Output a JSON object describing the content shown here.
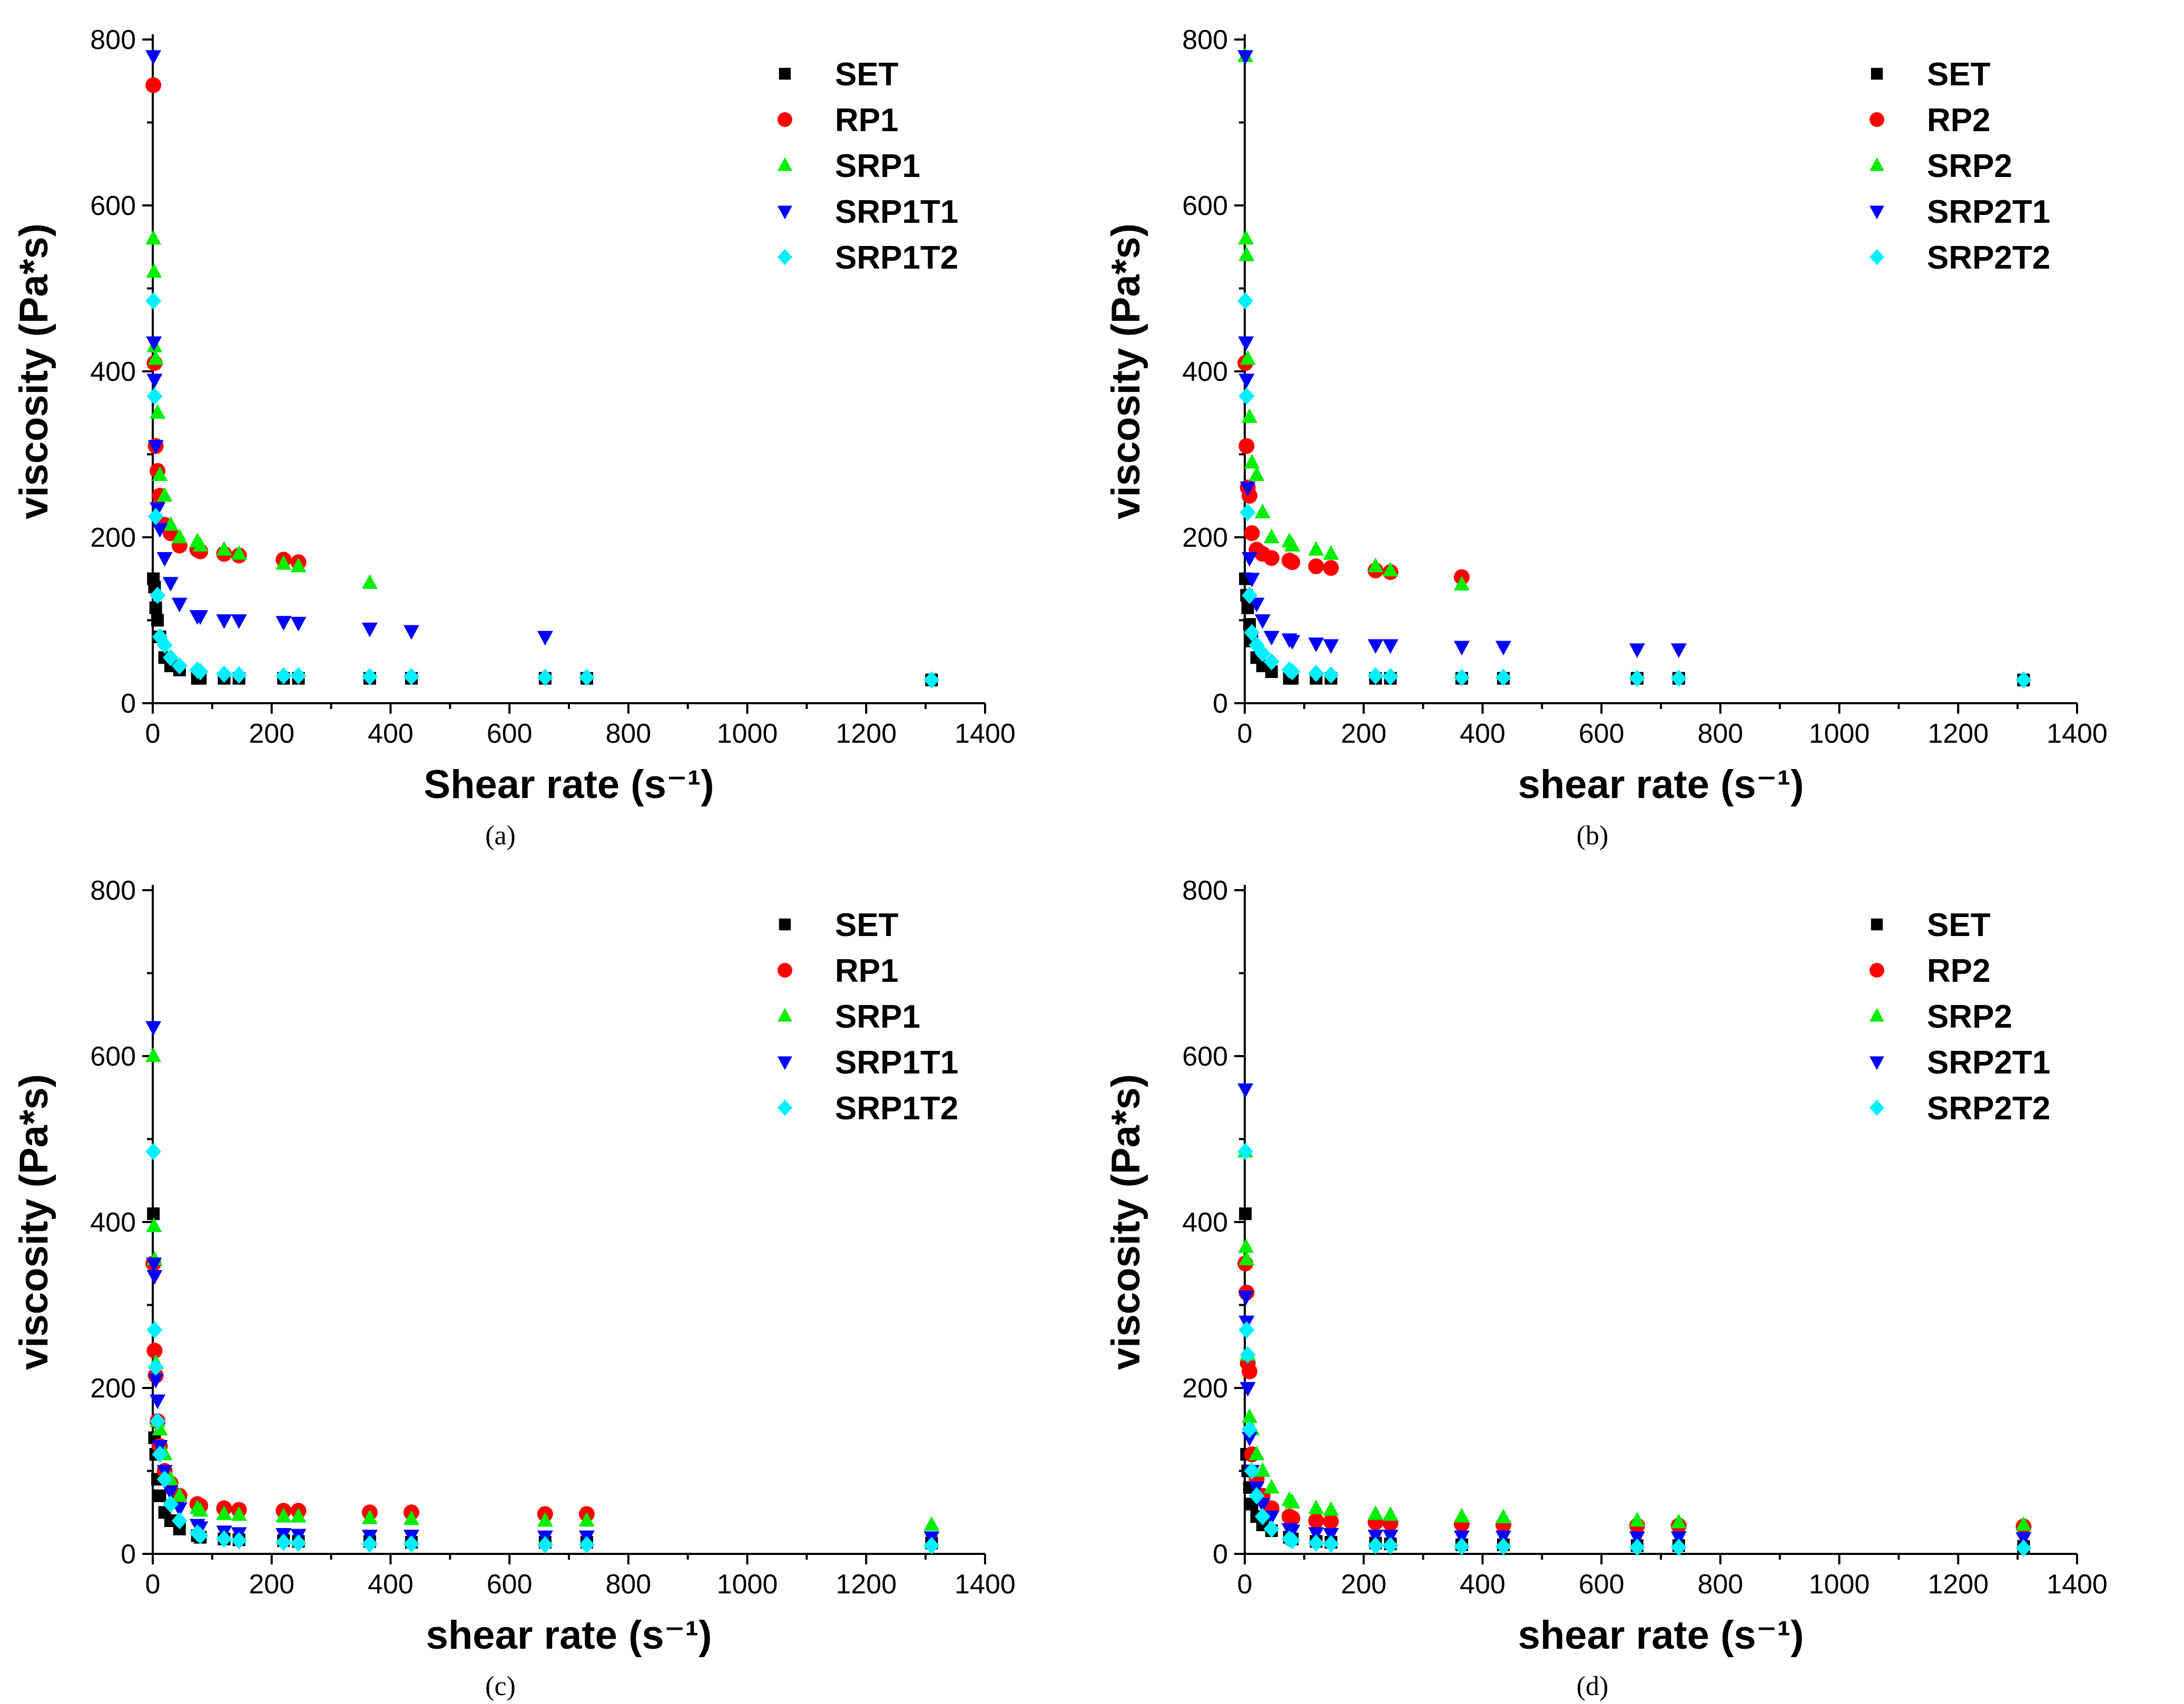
{
  "figure": {
    "series_colors": {
      "SET": "#000000",
      "RP": "#ff0000",
      "SRP": "#00ee00",
      "T1": "#0000ff",
      "T2": "#00f0ff"
    }
  },
  "chart_data": [
    {
      "type": "scatter",
      "caption": "(a)",
      "xlabel": "Shear rate (s⁻¹)",
      "ylabel": "viscosity (Pa*s)",
      "xlim": [
        0,
        1400
      ],
      "ylim": [
        0,
        800
      ],
      "xticks": [
        "0",
        "200",
        "400",
        "600",
        "800",
        "1000",
        "1200",
        "1400"
      ],
      "yticks": [
        "0",
        "200",
        "400",
        "600",
        "800"
      ],
      "legend_position": "top-right",
      "series": [
        {
          "name": "SET",
          "marker": "square",
          "color": "#000000",
          "x": [
            1,
            3,
            5,
            8,
            12,
            20,
            30,
            45,
            75,
            80,
            120,
            145,
            220,
            245,
            365,
            435,
            660,
            730,
            1310
          ],
          "y": [
            150,
            140,
            115,
            100,
            80,
            55,
            45,
            40,
            30,
            30,
            30,
            30,
            30,
            30,
            30,
            30,
            30,
            30,
            28
          ]
        },
        {
          "name": "RP1",
          "marker": "circle",
          "color": "#ff0000",
          "x": [
            1,
            3,
            5,
            8,
            12,
            20,
            30,
            45,
            75,
            80,
            120,
            145,
            220,
            245
          ],
          "y": [
            745,
            410,
            310,
            280,
            250,
            215,
            205,
            190,
            185,
            183,
            180,
            178,
            173,
            170
          ]
        },
        {
          "name": "SRP1",
          "marker": "triangle-up",
          "color": "#00ee00",
          "x": [
            1,
            2,
            3,
            5,
            8,
            12,
            20,
            30,
            45,
            75,
            80,
            120,
            145,
            220,
            245,
            365
          ],
          "y": [
            560,
            520,
            430,
            415,
            350,
            275,
            250,
            215,
            200,
            195,
            190,
            185,
            180,
            168,
            165,
            145
          ]
        },
        {
          "name": "SRP1T1",
          "marker": "triangle-down",
          "color": "#0000ff",
          "x": [
            1,
            2,
            3,
            5,
            8,
            12,
            20,
            30,
            45,
            75,
            80,
            120,
            145,
            220,
            245,
            365,
            435,
            660
          ],
          "y": [
            780,
            435,
            390,
            310,
            235,
            210,
            175,
            145,
            120,
            105,
            105,
            100,
            100,
            98,
            97,
            90,
            87,
            80
          ]
        },
        {
          "name": "SRP1T2",
          "marker": "diamond",
          "color": "#00f0ff",
          "x": [
            1,
            3,
            5,
            8,
            12,
            20,
            30,
            45,
            75,
            80,
            120,
            145,
            220,
            245,
            365,
            435,
            660,
            730,
            1310
          ],
          "y": [
            485,
            370,
            225,
            130,
            80,
            70,
            55,
            45,
            40,
            38,
            35,
            34,
            33,
            33,
            32,
            32,
            31,
            31,
            28
          ]
        }
      ]
    },
    {
      "type": "scatter",
      "caption": "(b)",
      "xlabel": "shear rate (s⁻¹)",
      "ylabel": "viscosity (Pa*s)",
      "xlim": [
        0,
        1400
      ],
      "ylim": [
        0,
        800
      ],
      "xticks": [
        "0",
        "200",
        "400",
        "600",
        "800",
        "1000",
        "1200",
        "1400"
      ],
      "yticks": [
        "0",
        "200",
        "400",
        "600",
        "800"
      ],
      "legend_position": "top-right",
      "series": [
        {
          "name": "SET",
          "marker": "square",
          "color": "#000000",
          "x": [
            1,
            3,
            5,
            8,
            12,
            20,
            30,
            45,
            75,
            80,
            120,
            145,
            220,
            245,
            365,
            435,
            660,
            730,
            1310
          ],
          "y": [
            150,
            130,
            115,
            95,
            75,
            55,
            45,
            38,
            30,
            30,
            30,
            30,
            30,
            30,
            30,
            30,
            30,
            30,
            28
          ]
        },
        {
          "name": "RP2",
          "marker": "circle",
          "color": "#ff0000",
          "x": [
            1,
            3,
            5,
            8,
            12,
            20,
            30,
            45,
            75,
            80,
            120,
            145,
            220,
            245,
            365
          ],
          "y": [
            410,
            310,
            260,
            250,
            205,
            185,
            180,
            175,
            172,
            170,
            165,
            163,
            160,
            158,
            152
          ]
        },
        {
          "name": "SRP2",
          "marker": "triangle-up",
          "color": "#00ee00",
          "x": [
            1,
            2,
            3,
            5,
            8,
            12,
            20,
            30,
            45,
            75,
            80,
            120,
            145,
            220,
            245,
            365
          ],
          "y": [
            780,
            560,
            540,
            415,
            345,
            290,
            275,
            230,
            200,
            195,
            190,
            185,
            180,
            165,
            160,
            143
          ]
        },
        {
          "name": "SRP2T1",
          "marker": "triangle-down",
          "color": "#0000ff",
          "x": [
            1,
            2,
            3,
            5,
            8,
            12,
            20,
            30,
            45,
            75,
            80,
            120,
            145,
            220,
            245,
            365,
            435,
            660,
            730
          ],
          "y": [
            780,
            435,
            390,
            260,
            175,
            150,
            120,
            100,
            80,
            77,
            75,
            72,
            70,
            70,
            70,
            68,
            68,
            65,
            65
          ]
        },
        {
          "name": "SRP2T2",
          "marker": "diamond",
          "color": "#00f0ff",
          "x": [
            1,
            3,
            5,
            8,
            12,
            20,
            30,
            45,
            75,
            80,
            120,
            145,
            220,
            245,
            365,
            435,
            660,
            730,
            1310
          ],
          "y": [
            485,
            370,
            230,
            130,
            85,
            70,
            60,
            50,
            40,
            38,
            36,
            34,
            33,
            32,
            31,
            31,
            30,
            30,
            28
          ]
        }
      ]
    },
    {
      "type": "scatter",
      "caption": "(c)",
      "xlabel": "shear rate (s⁻¹)",
      "ylabel": "viscosity (Pa*s)",
      "xlim": [
        0,
        1400
      ],
      "ylim": [
        0,
        800
      ],
      "xticks": [
        "0",
        "200",
        "400",
        "600",
        "800",
        "1000",
        "1200",
        "1400"
      ],
      "yticks": [
        "0",
        "200",
        "400",
        "600",
        "800"
      ],
      "legend_position": "top-right",
      "series": [
        {
          "name": "SET",
          "marker": "square",
          "color": "#000000",
          "x": [
            1,
            3,
            5,
            8,
            12,
            20,
            30,
            45,
            75,
            80,
            120,
            145,
            220,
            245,
            365,
            435,
            660,
            730,
            1310
          ],
          "y": [
            410,
            140,
            120,
            90,
            70,
            50,
            40,
            30,
            22,
            20,
            18,
            17,
            16,
            15,
            15,
            14,
            14,
            14,
            13
          ]
        },
        {
          "name": "RP1",
          "marker": "circle",
          "color": "#ff0000",
          "x": [
            1,
            3,
            5,
            8,
            12,
            20,
            30,
            45,
            75,
            80,
            120,
            145,
            220,
            245,
            365,
            435,
            660,
            730
          ],
          "y": [
            350,
            245,
            215,
            160,
            130,
            100,
            85,
            70,
            60,
            58,
            55,
            53,
            52,
            52,
            50,
            50,
            48,
            48
          ]
        },
        {
          "name": "SRP1",
          "marker": "triangle-up",
          "color": "#00ee00",
          "x": [
            1,
            2,
            3,
            5,
            8,
            12,
            20,
            30,
            45,
            75,
            80,
            120,
            145,
            220,
            245,
            365,
            435,
            660,
            730,
            1310
          ],
          "y": [
            600,
            395,
            355,
            230,
            160,
            150,
            120,
            90,
            70,
            55,
            52,
            48,
            47,
            45,
            45,
            43,
            42,
            40,
            40,
            35
          ]
        },
        {
          "name": "SRP1T1",
          "marker": "triangle-down",
          "color": "#0000ff",
          "x": [
            1,
            2,
            3,
            5,
            8,
            12,
            20,
            30,
            45,
            75,
            80,
            120,
            145,
            220,
            245,
            365,
            435,
            660,
            730,
            1310
          ],
          "y": [
            635,
            350,
            335,
            210,
            185,
            130,
            100,
            75,
            55,
            35,
            32,
            27,
            25,
            24,
            23,
            22,
            22,
            21,
            21,
            20
          ]
        },
        {
          "name": "SRP1T2",
          "marker": "diamond",
          "color": "#00f0ff",
          "x": [
            1,
            3,
            5,
            8,
            12,
            20,
            30,
            45,
            75,
            80,
            120,
            145,
            220,
            245,
            365,
            435,
            660,
            730,
            1310
          ],
          "y": [
            485,
            270,
            225,
            160,
            120,
            90,
            60,
            40,
            25,
            22,
            18,
            16,
            14,
            13,
            12,
            12,
            11,
            11,
            10
          ]
        }
      ]
    },
    {
      "type": "scatter",
      "caption": "(d)",
      "xlabel": "shear rate (s⁻¹)",
      "ylabel": "viscosity (Pa*s)",
      "xlim": [
        0,
        1400
      ],
      "ylim": [
        0,
        800
      ],
      "xticks": [
        "0",
        "200",
        "400",
        "600",
        "800",
        "1000",
        "1200",
        "1400"
      ],
      "yticks": [
        "0",
        "200",
        "400",
        "600",
        "800"
      ],
      "legend_position": "top-right",
      "series": [
        {
          "name": "SET",
          "marker": "square",
          "color": "#000000",
          "x": [
            1,
            3,
            5,
            8,
            12,
            20,
            30,
            45,
            75,
            80,
            120,
            145,
            220,
            245,
            365,
            435,
            660,
            730,
            1310
          ],
          "y": [
            410,
            120,
            100,
            80,
            60,
            45,
            35,
            28,
            20,
            18,
            15,
            14,
            13,
            12,
            11,
            11,
            10,
            10,
            9
          ]
        },
        {
          "name": "RP2",
          "marker": "circle",
          "color": "#ff0000",
          "x": [
            1,
            3,
            5,
            8,
            12,
            20,
            30,
            45,
            75,
            80,
            120,
            145,
            220,
            245,
            365,
            435,
            660,
            730,
            1310
          ],
          "y": [
            350,
            315,
            230,
            220,
            120,
            90,
            70,
            55,
            45,
            43,
            40,
            39,
            38,
            37,
            36,
            35,
            34,
            34,
            33
          ]
        },
        {
          "name": "SRP2",
          "marker": "triangle-up",
          "color": "#00ee00",
          "x": [
            1,
            2,
            3,
            5,
            8,
            12,
            20,
            30,
            45,
            75,
            80,
            120,
            145,
            220,
            245,
            365,
            435,
            660,
            730,
            1310
          ],
          "y": [
            485,
            370,
            355,
            240,
            165,
            150,
            120,
            100,
            80,
            65,
            62,
            55,
            53,
            48,
            47,
            45,
            44,
            40,
            38,
            35
          ]
        },
        {
          "name": "SRP2T1",
          "marker": "triangle-down",
          "color": "#0000ff",
          "x": [
            1,
            2,
            3,
            5,
            8,
            12,
            20,
            30,
            45,
            75,
            80,
            120,
            145,
            220,
            245,
            365,
            435,
            660,
            730,
            1310
          ],
          "y": [
            560,
            310,
            280,
            200,
            140,
            100,
            80,
            60,
            45,
            30,
            28,
            25,
            24,
            22,
            22,
            21,
            21,
            20,
            20,
            19
          ]
        },
        {
          "name": "SRP2T2",
          "marker": "diamond",
          "color": "#00f0ff",
          "x": [
            1,
            3,
            5,
            8,
            12,
            20,
            30,
            45,
            75,
            80,
            120,
            145,
            220,
            245,
            365,
            435,
            660,
            730,
            1310
          ],
          "y": [
            485,
            270,
            240,
            150,
            100,
            70,
            45,
            30,
            18,
            16,
            13,
            12,
            10,
            10,
            9,
            9,
            8,
            8,
            7
          ]
        }
      ]
    }
  ]
}
